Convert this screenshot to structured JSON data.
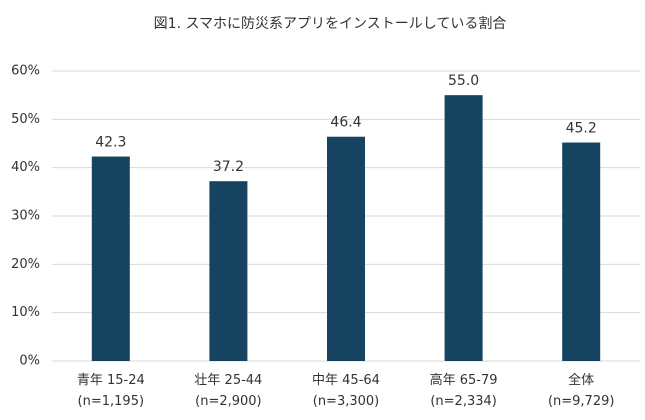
{
  "chart_data": {
    "type": "bar",
    "title": "図1. スマホに防災系アプリをインストールしている割合",
    "categories": [
      "青年 15-24\n(n=1,195)",
      "壮年 25-44\n(n=2,900)",
      "中年 45-64\n(n=3,300)",
      "高年 65-79\n(n=2,334)",
      "全体\n(n=9,729)"
    ],
    "values": [
      42.3,
      37.2,
      46.4,
      55.0,
      45.2
    ],
    "value_labels": [
      "42.3",
      "37.2",
      "46.4",
      "55.0",
      "45.2"
    ],
    "color": "#154360",
    "ylim": [
      0,
      60
    ],
    "yticks": [
      {
        "value": 0,
        "label": "0%"
      },
      {
        "value": 10,
        "label": "10%"
      },
      {
        "value": 20,
        "label": "20%"
      },
      {
        "value": 30,
        "label": "30%"
      },
      {
        "value": 40,
        "label": "40%"
      },
      {
        "value": 50,
        "label": "50%"
      },
      {
        "value": 60,
        "label": "60%"
      }
    ],
    "grid": true
  }
}
